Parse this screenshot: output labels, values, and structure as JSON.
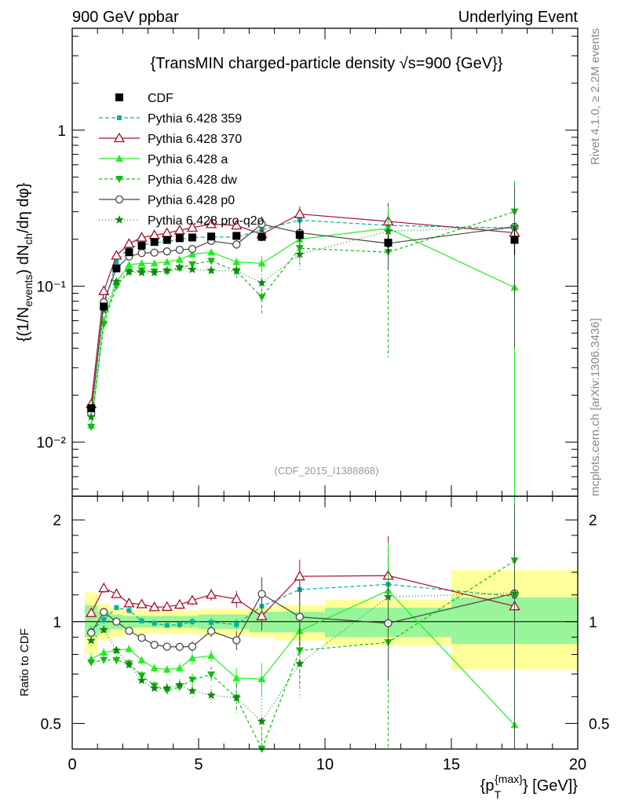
{
  "header": {
    "left": "900 GeV ppbar",
    "right": "Underlying Event",
    "side_top": "Rivet 4.1.0, ≥ 2.2M events",
    "side_bottom": "mcplots.cern.ch [arXiv:1306.3436]"
  },
  "chart_data": {
    "type": "line",
    "title": "{TransMIN charged-particle density √s=900 {GeV}}",
    "watermark": "(CDF_2015_I1388868)",
    "ylabel": "{(1/N_events) dN_ch/dη dφ}",
    "ylabel_parts": {
      "a": "{(1/N",
      "b": "events",
      "c": ") dN",
      "d": "ch",
      "e": "/dη dφ}"
    },
    "ratio_ylabel": "Ratio to CDF",
    "xlabel": "{p_T^{max}} [GeV]}",
    "xlabel_parts": {
      "a": "{p",
      "b": "T",
      "c": "{max}",
      "d": "} [GeV]}"
    },
    "xlim": [
      0,
      20
    ],
    "ylim": [
      0.0045,
      4.5
    ],
    "ratio_ylim": [
      0.42,
      2.35
    ],
    "yscale": "log",
    "ratio_yscale": "log",
    "x_ticks": [
      0,
      5,
      10,
      15,
      20
    ],
    "x_tick_labels": [
      "0",
      "5",
      "10",
      "15",
      "20"
    ],
    "y_tick_labels": [
      "10⁻²",
      "10⁻¹",
      "1"
    ],
    "ratio_tick_labels": [
      "0.5",
      "1",
      "2"
    ],
    "x": [
      0.75,
      1.25,
      1.75,
      2.25,
      2.75,
      3.25,
      3.75,
      4.25,
      4.75,
      5.5,
      6.5,
      7.5,
      9.0,
      12.5,
      17.5
    ],
    "data": {
      "name": "CDF",
      "values": [
        0.0165,
        0.074,
        0.13,
        0.165,
        0.182,
        0.192,
        0.198,
        0.203,
        0.205,
        0.208,
        0.21,
        0.207,
        0.213,
        0.19,
        0.198
      ],
      "err": [
        0.001,
        0.004,
        0.006,
        0.007,
        0.008,
        0.008,
        0.008,
        0.009,
        0.009,
        0.01,
        0.011,
        0.013,
        0.018,
        0.025,
        0.04
      ]
    },
    "bands": [
      {
        "x0": 0.5,
        "x1": 1.0,
        "inner": [
          0.9,
          1.12
        ],
        "outer": [
          0.8,
          1.22
        ]
      },
      {
        "x0": 1.0,
        "x1": 1.5,
        "inner": [
          0.93,
          1.07
        ],
        "outer": [
          0.88,
          1.13
        ]
      },
      {
        "x0": 1.5,
        "x1": 2.0,
        "inner": [
          0.95,
          1.05
        ],
        "outer": [
          0.9,
          1.1
        ]
      },
      {
        "x0": 2.0,
        "x1": 2.5,
        "inner": [
          0.96,
          1.04
        ],
        "outer": [
          0.92,
          1.08
        ]
      },
      {
        "x0": 2.5,
        "x1": 3.0,
        "inner": [
          0.96,
          1.04
        ],
        "outer": [
          0.92,
          1.08
        ]
      },
      {
        "x0": 3.0,
        "x1": 3.5,
        "inner": [
          0.96,
          1.04
        ],
        "outer": [
          0.92,
          1.08
        ]
      },
      {
        "x0": 3.5,
        "x1": 4.0,
        "inner": [
          0.96,
          1.04
        ],
        "outer": [
          0.92,
          1.08
        ]
      },
      {
        "x0": 4.0,
        "x1": 4.5,
        "inner": [
          0.96,
          1.04
        ],
        "outer": [
          0.92,
          1.08
        ]
      },
      {
        "x0": 4.5,
        "x1": 5.0,
        "inner": [
          0.96,
          1.04
        ],
        "outer": [
          0.92,
          1.08
        ]
      },
      {
        "x0": 5.0,
        "x1": 6.0,
        "inner": [
          0.95,
          1.05
        ],
        "outer": [
          0.91,
          1.09
        ]
      },
      {
        "x0": 6.0,
        "x1": 7.0,
        "inner": [
          0.95,
          1.05
        ],
        "outer": [
          0.91,
          1.09
        ]
      },
      {
        "x0": 7.0,
        "x1": 8.0,
        "inner": [
          0.93,
          1.07
        ],
        "outer": [
          0.9,
          1.1
        ]
      },
      {
        "x0": 8.0,
        "x1": 10.0,
        "inner": [
          0.93,
          1.07
        ],
        "outer": [
          0.88,
          1.12
        ]
      },
      {
        "x0": 10.0,
        "x1": 15.0,
        "inner": [
          0.9,
          1.1
        ],
        "outer": [
          0.85,
          1.16
        ]
      },
      {
        "x0": 15.0,
        "x1": 20.0,
        "inner": [
          0.86,
          1.18
        ],
        "outer": [
          0.72,
          1.42
        ]
      }
    ],
    "series": [
      {
        "name": "Pythia 6.428 359",
        "color": "#00b39a",
        "dash": "5,3",
        "marker": "smallsquare",
        "values": [
          0.0155,
          0.075,
          0.143,
          0.178,
          0.183,
          0.19,
          0.193,
          0.199,
          0.205,
          0.207,
          0.206,
          0.23,
          0.265,
          0.245,
          0.235
        ],
        "err": [
          0.0005,
          0.002,
          0.003,
          0.004,
          0.004,
          0.004,
          0.004,
          0.005,
          0.005,
          0.006,
          0.008,
          0.012,
          0.025,
          0.06,
          0.22
        ]
      },
      {
        "name": "Pythia 6.428 370",
        "color": "#a50f2d",
        "dash": "",
        "marker": "opentriangle",
        "values": [
          0.0175,
          0.093,
          0.157,
          0.187,
          0.205,
          0.212,
          0.219,
          0.228,
          0.237,
          0.25,
          0.245,
          0.215,
          0.29,
          0.26,
          0.22
        ],
        "err": [
          0.0005,
          0.003,
          0.004,
          0.005,
          0.005,
          0.006,
          0.006,
          0.007,
          0.008,
          0.01,
          0.014,
          0.02,
          0.035,
          0.08,
          0.2
        ]
      },
      {
        "name": "Pythia 6.428 a",
        "color": "#22ee22",
        "dash": "",
        "marker": "triangle",
        "values": [
          0.0128,
          0.06,
          0.107,
          0.137,
          0.14,
          0.14,
          0.143,
          0.148,
          0.16,
          0.165,
          0.143,
          0.14,
          0.2,
          0.235,
          0.098
        ],
        "err": [
          0.0005,
          0.002,
          0.003,
          0.004,
          0.004,
          0.004,
          0.004,
          0.005,
          0.006,
          0.007,
          0.01,
          0.016,
          0.03,
          0.09,
          0.2
        ]
      },
      {
        "name": "Pythia 6.428 dw",
        "color": "#11bb11",
        "dash": "4,3",
        "marker": "invtriangle",
        "values": [
          0.0125,
          0.057,
          0.1,
          0.124,
          0.126,
          0.124,
          0.124,
          0.13,
          0.138,
          0.145,
          0.125,
          0.085,
          0.175,
          0.165,
          0.3
        ],
        "err": [
          0.0005,
          0.002,
          0.003,
          0.004,
          0.004,
          0.004,
          0.004,
          0.005,
          0.006,
          0.008,
          0.012,
          0.02,
          0.04,
          0.13,
          0.17
        ]
      },
      {
        "name": "Pythia 6.428 p0",
        "color": "#444444",
        "dash": "",
        "marker": "opencircle",
        "values": [
          0.0153,
          0.079,
          0.13,
          0.155,
          0.163,
          0.164,
          0.167,
          0.171,
          0.173,
          0.195,
          0.185,
          0.25,
          0.22,
          0.188,
          0.24
        ],
        "err": [
          0.0005,
          0.002,
          0.003,
          0.004,
          0.004,
          0.004,
          0.004,
          0.005,
          0.006,
          0.008,
          0.012,
          0.03,
          0.04,
          0.06,
          0.2
        ]
      },
      {
        "name": "Pythia 6.428 pro-q2o",
        "color": "#118811",
        "dash": "1,3",
        "marker": "star",
        "values": [
          0.0145,
          0.07,
          0.107,
          0.123,
          0.122,
          0.122,
          0.126,
          0.132,
          0.128,
          0.126,
          0.125,
          0.105,
          0.16,
          0.225,
          0.24
        ],
        "err": [
          0.0005,
          0.002,
          0.003,
          0.004,
          0.004,
          0.004,
          0.004,
          0.005,
          0.006,
          0.008,
          0.012,
          0.02,
          0.035,
          0.09,
          0.2
        ]
      }
    ]
  }
}
